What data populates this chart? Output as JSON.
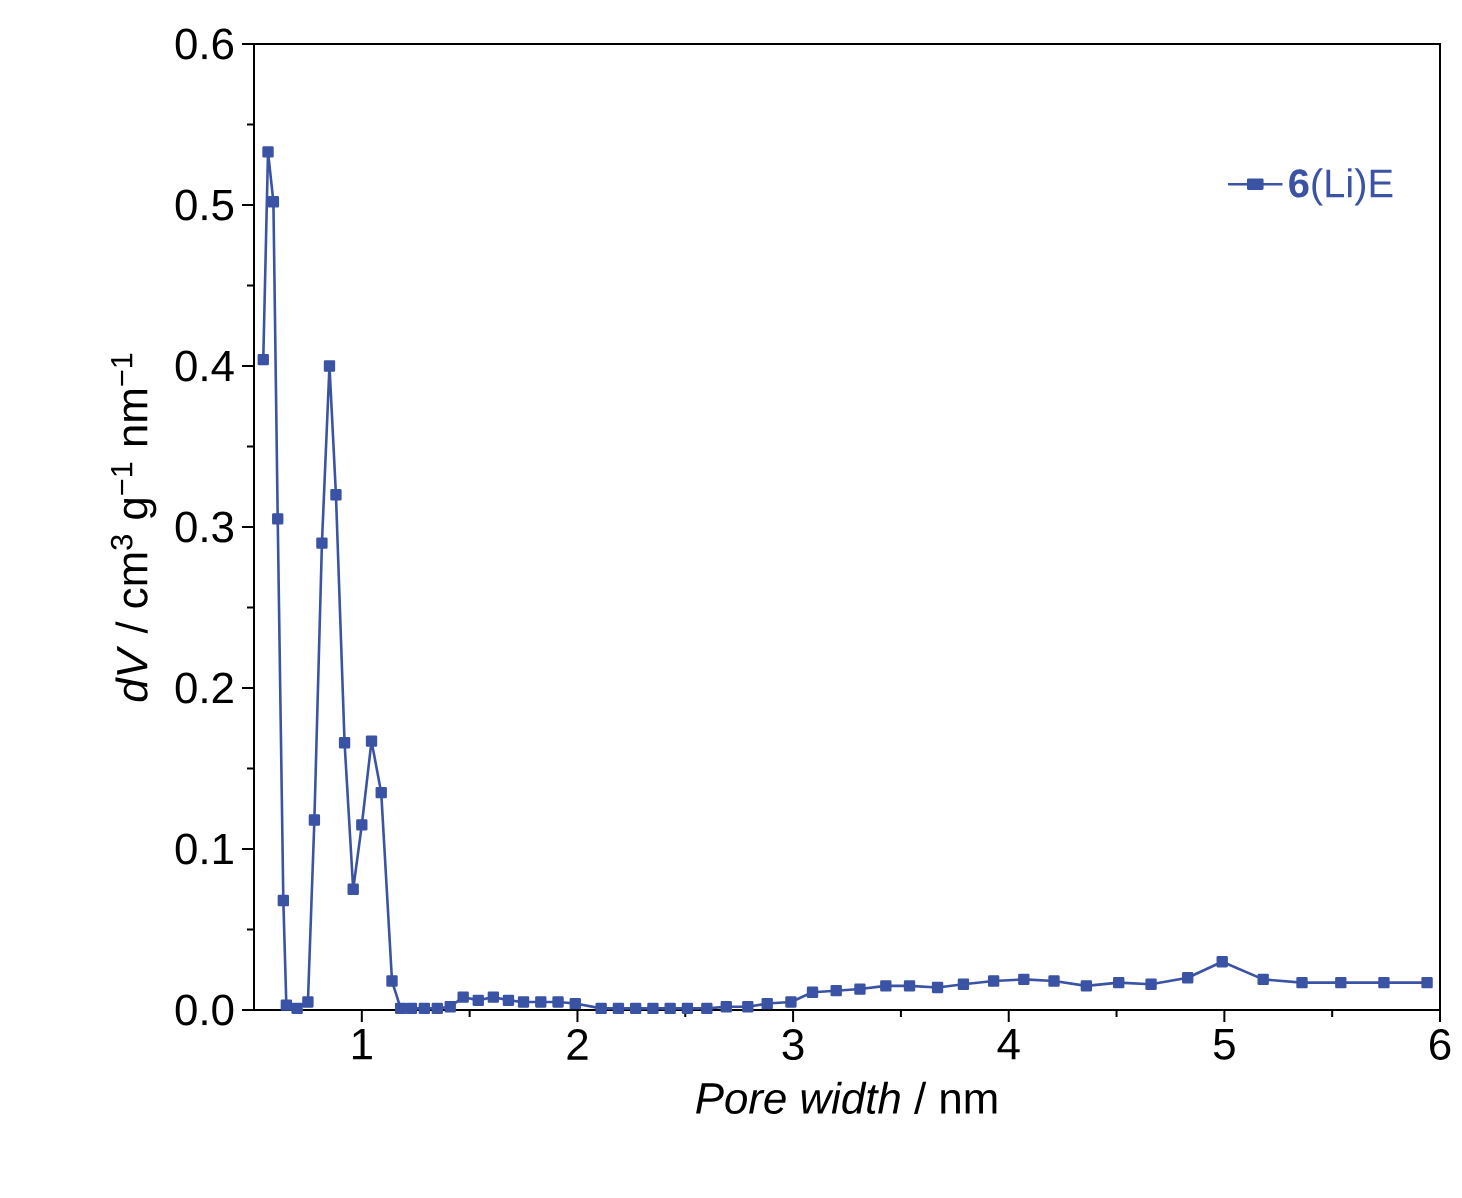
{
  "chart_data": {
    "type": "line",
    "xlabel": "*Pore width* / nm",
    "ylabel": "*dV* / cm$^{3}$ g$^{−1}$ nm$^{−1}$",
    "x": [
      0.543,
      0.565,
      0.59,
      0.61,
      0.636,
      0.65,
      0.7,
      0.75,
      0.78,
      0.815,
      0.85,
      0.88,
      0.92,
      0.96,
      1.0,
      1.045,
      1.09,
      1.14,
      1.18,
      1.23,
      1.29,
      1.35,
      1.41,
      1.47,
      1.54,
      1.61,
      1.68,
      1.75,
      1.83,
      1.91,
      1.99,
      2.11,
      2.19,
      2.27,
      2.35,
      2.43,
      2.51,
      2.6,
      2.69,
      2.79,
      2.88,
      2.99,
      3.09,
      3.2,
      3.31,
      3.43,
      3.54,
      3.67,
      3.79,
      3.93,
      4.07,
      4.21,
      4.36,
      4.51,
      4.66,
      4.83,
      4.99,
      5.18,
      5.36,
      5.54,
      5.74,
      5.94
    ],
    "series": [
      {
        "name": "**6**(Li)E",
        "color": "#3a53a4",
        "values": [
          0.404,
          0.533,
          0.502,
          0.305,
          0.068,
          0.003,
          0.001,
          0.005,
          0.118,
          0.29,
          0.4,
          0.32,
          0.166,
          0.075,
          0.115,
          0.167,
          0.135,
          0.018,
          0.001,
          0.001,
          0.001,
          0.001,
          0.002,
          0.008,
          0.006,
          0.008,
          0.006,
          0.005,
          0.005,
          0.005,
          0.004,
          0.001,
          0.001,
          0.001,
          0.001,
          0.001,
          0.001,
          0.001,
          0.002,
          0.002,
          0.004,
          0.005,
          0.011,
          0.012,
          0.013,
          0.015,
          0.015,
          0.014,
          0.016,
          0.018,
          0.019,
          0.018,
          0.015,
          0.017,
          0.016,
          0.02,
          0.03,
          0.019,
          0.017,
          0.017,
          0.017,
          0.017
        ]
      }
    ],
    "xlim": [
      0.5,
      6
    ],
    "ylim": [
      0,
      0.6
    ],
    "xticks": [
      1,
      2,
      3,
      4,
      5,
      6
    ],
    "yticks": [
      {
        "value": 0,
        "label": "0.0"
      },
      {
        "value": 0.1,
        "label": "0.1"
      },
      {
        "value": 0.2,
        "label": "0.2"
      },
      {
        "value": 0.3,
        "label": "0.3"
      },
      {
        "value": 0.4,
        "label": "0.4"
      },
      {
        "value": 0.5,
        "label": "0.5"
      },
      {
        "value": 0.6,
        "label": "0.6"
      }
    ],
    "grid": false,
    "legend": "top right",
    "marker": "square",
    "line_style": "solid"
  }
}
